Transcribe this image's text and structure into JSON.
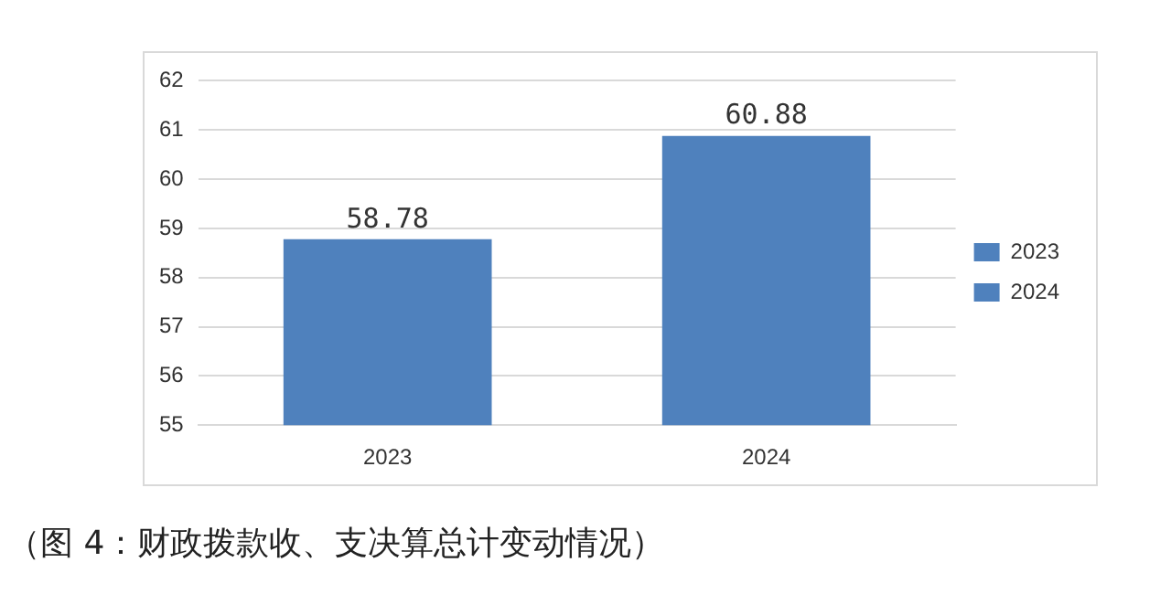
{
  "chart_data": {
    "type": "bar",
    "categories": [
      "2023",
      "2024"
    ],
    "series": [
      {
        "name": "2023",
        "color": "#4f81bd",
        "values": [
          58.78,
          null
        ]
      },
      {
        "name": "2024",
        "color": "#4f81bd",
        "values": [
          null,
          60.88
        ]
      }
    ],
    "ylim": [
      55,
      62
    ],
    "yticks": [
      55,
      56,
      57,
      58,
      59,
      60,
      61,
      62
    ],
    "grid": "y",
    "legend": "right",
    "data_labels": true,
    "annotations": [
      "（图 4：财政拨款收、支决算总计变动情况）"
    ]
  }
}
